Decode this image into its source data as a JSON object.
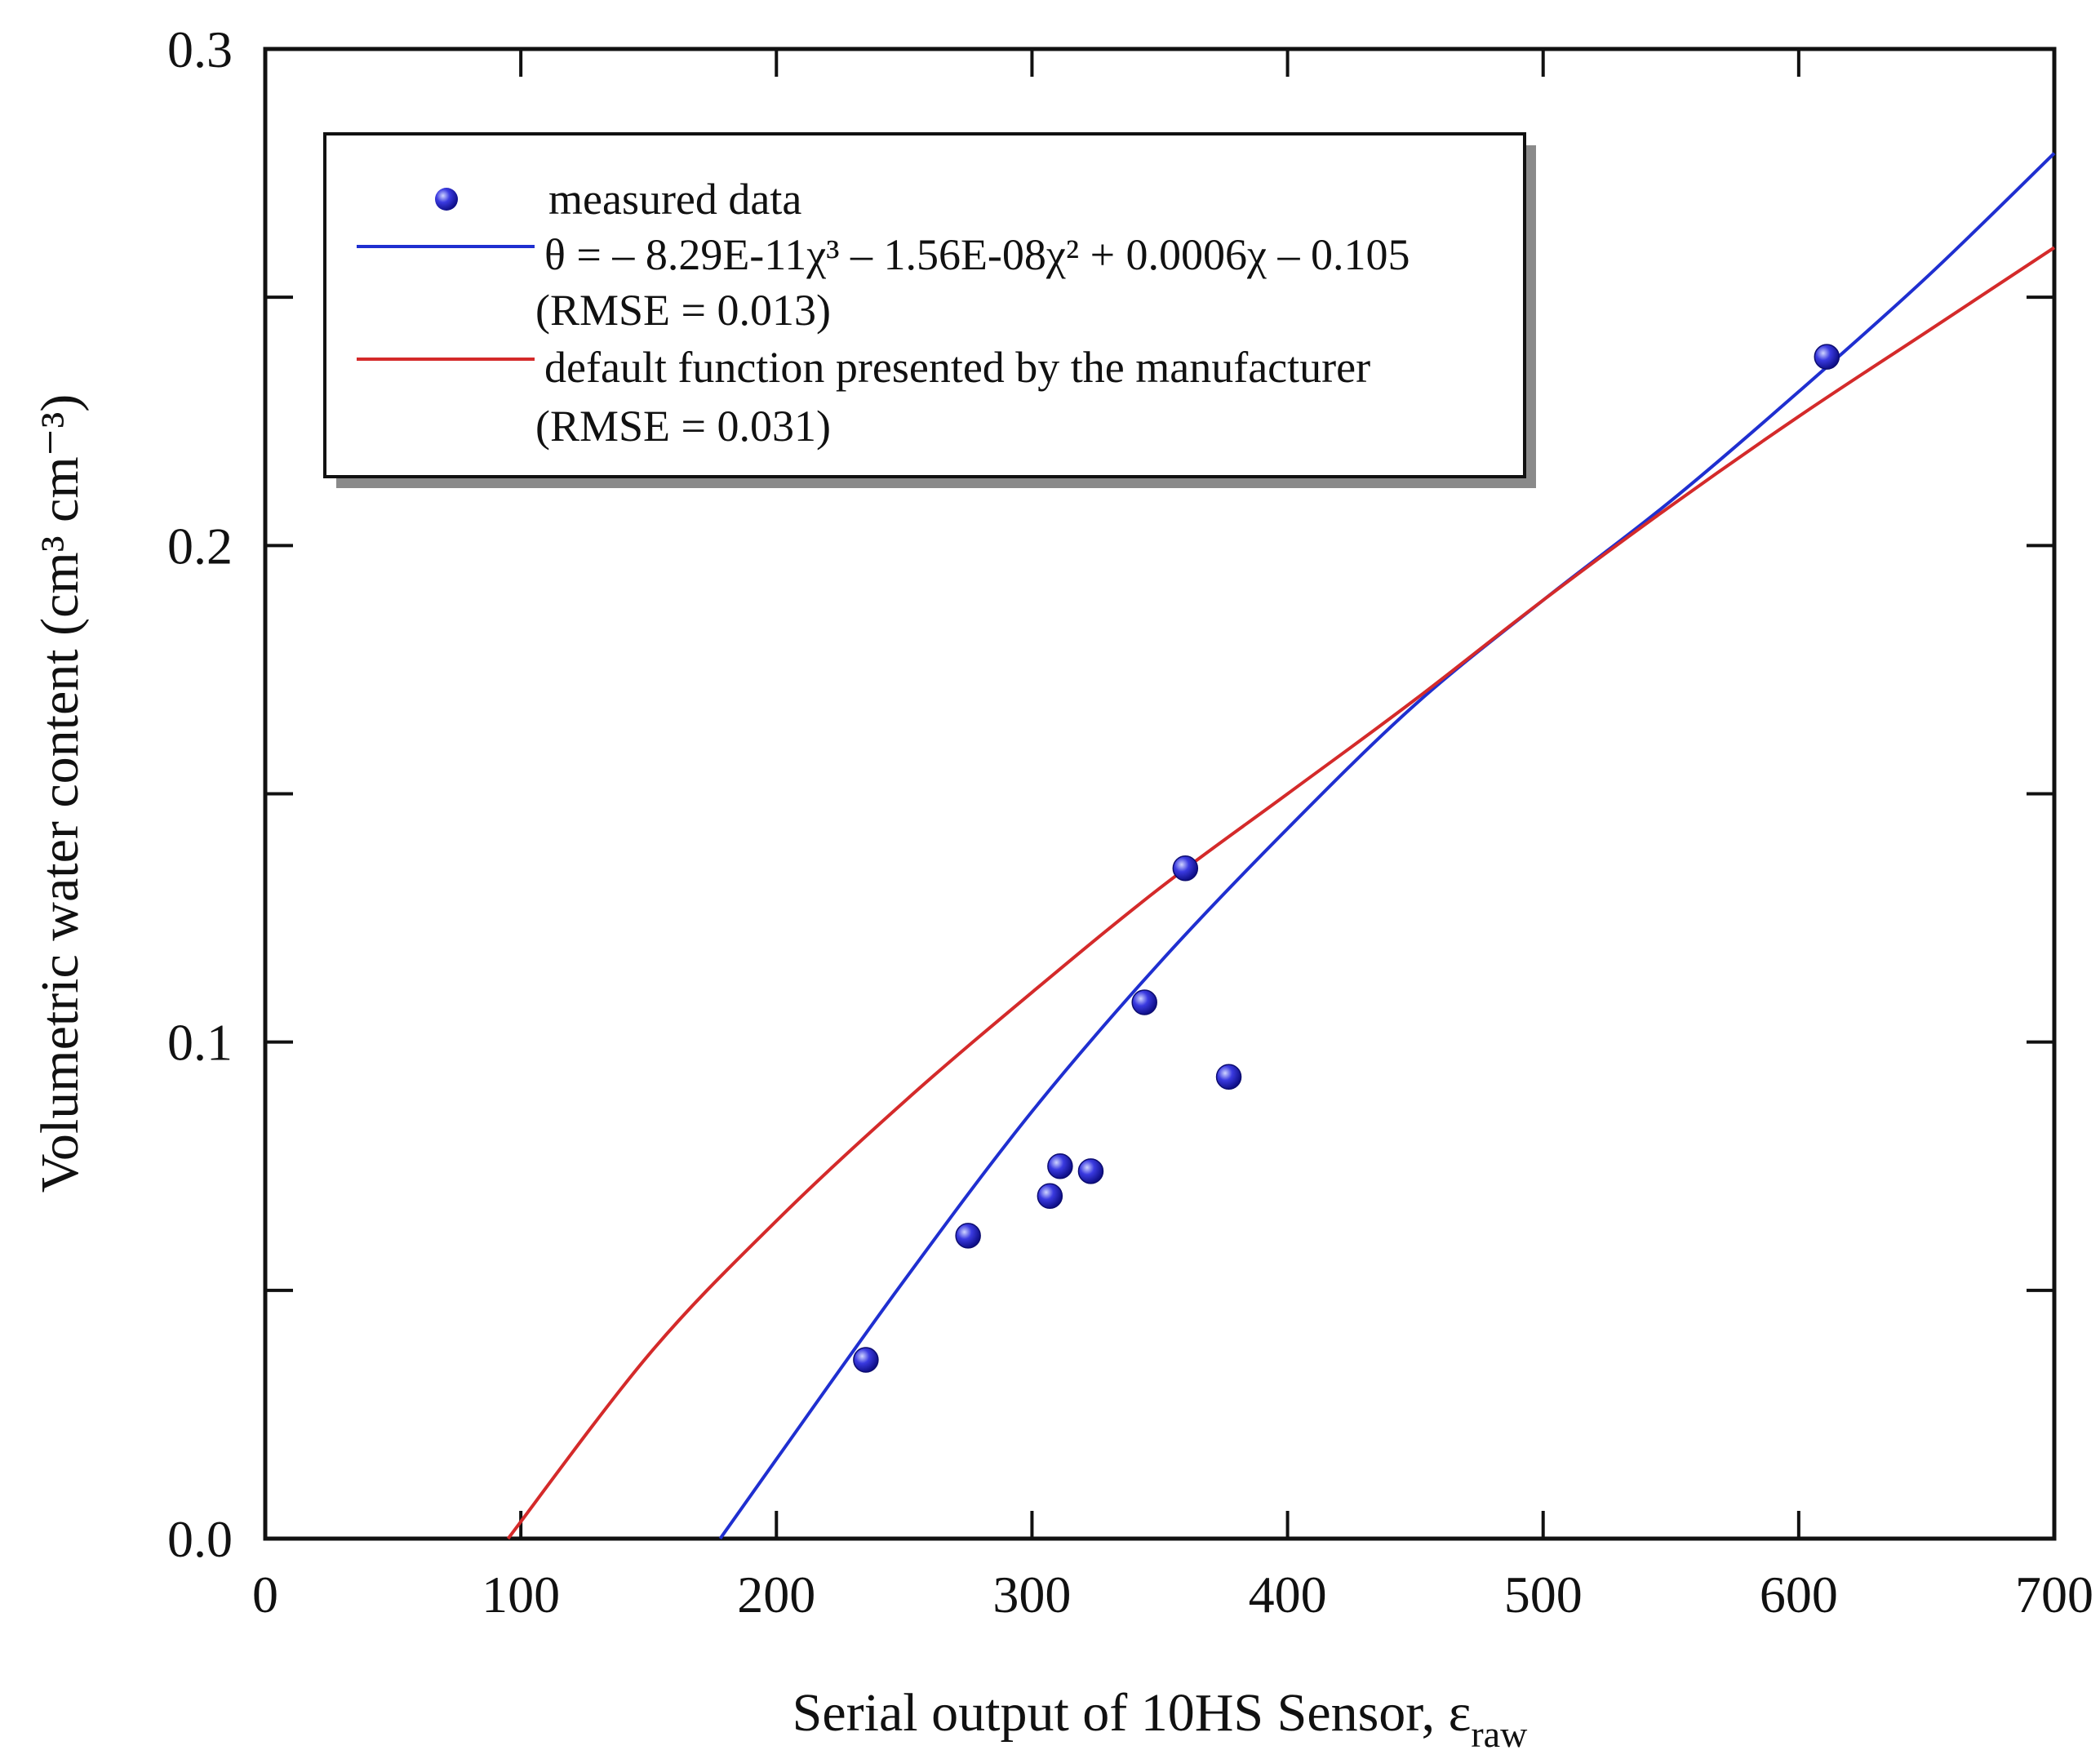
{
  "chart_data": {
    "type": "scatter",
    "title": "",
    "xlabel": "Serial output of 10HS Sensor, ε",
    "xlabel_subscript": "raw",
    "ylabel": "Volumetric water content (cm³ cm⁻³)",
    "xlim": [
      0,
      700
    ],
    "ylim": [
      0,
      0.3
    ],
    "x_ticks": [
      0,
      100,
      200,
      300,
      400,
      500,
      600,
      700
    ],
    "y_ticks": [
      0.0,
      0.1,
      0.2,
      0.3
    ],
    "x_tick_labels": [
      "0",
      "100",
      "200",
      "300",
      "400",
      "500",
      "600",
      "700"
    ],
    "y_tick_labels": [
      "0.0",
      "0.1",
      "0.2",
      "0.3"
    ],
    "y_minor_ticks": [
      0.05,
      0.15,
      0.25
    ],
    "legend_position": "top-left",
    "series": [
      {
        "name": "measured data",
        "kind": "points",
        "color": "#2a2ad8",
        "x": [
          235,
          275,
          307,
          311,
          323,
          344,
          360,
          377,
          611
        ],
        "y": [
          0.036,
          0.061,
          0.069,
          0.075,
          0.074,
          0.108,
          0.135,
          0.093,
          0.238
        ]
      },
      {
        "name": "θ = – 8.29E-11χ³ – 1.56E-08χ² + 0.0006χ – 0.105",
        "rmse": "(RMSE = 0.013)",
        "kind": "line",
        "color": "#1f2fd0",
        "x": [
          178,
          200,
          250,
          300,
          350,
          400,
          450,
          500,
          550,
          600,
          650,
          700
        ],
        "y": [
          0.0,
          0.016,
          0.052,
          0.086,
          0.116,
          0.143,
          0.168,
          0.189,
          0.209,
          0.231,
          0.254,
          0.279
        ]
      },
      {
        "name": "default function presented by the manufacturer",
        "rmse": "(RMSE = 0.031)",
        "kind": "line",
        "color": "#d42a2a",
        "x": [
          95,
          150,
          200,
          250,
          300,
          350,
          400,
          450,
          500,
          550,
          600,
          650,
          700
        ],
        "y": [
          0.0,
          0.037,
          0.064,
          0.088,
          0.11,
          0.131,
          0.15,
          0.169,
          0.189,
          0.208,
          0.226,
          0.243,
          0.26
        ]
      }
    ]
  }
}
